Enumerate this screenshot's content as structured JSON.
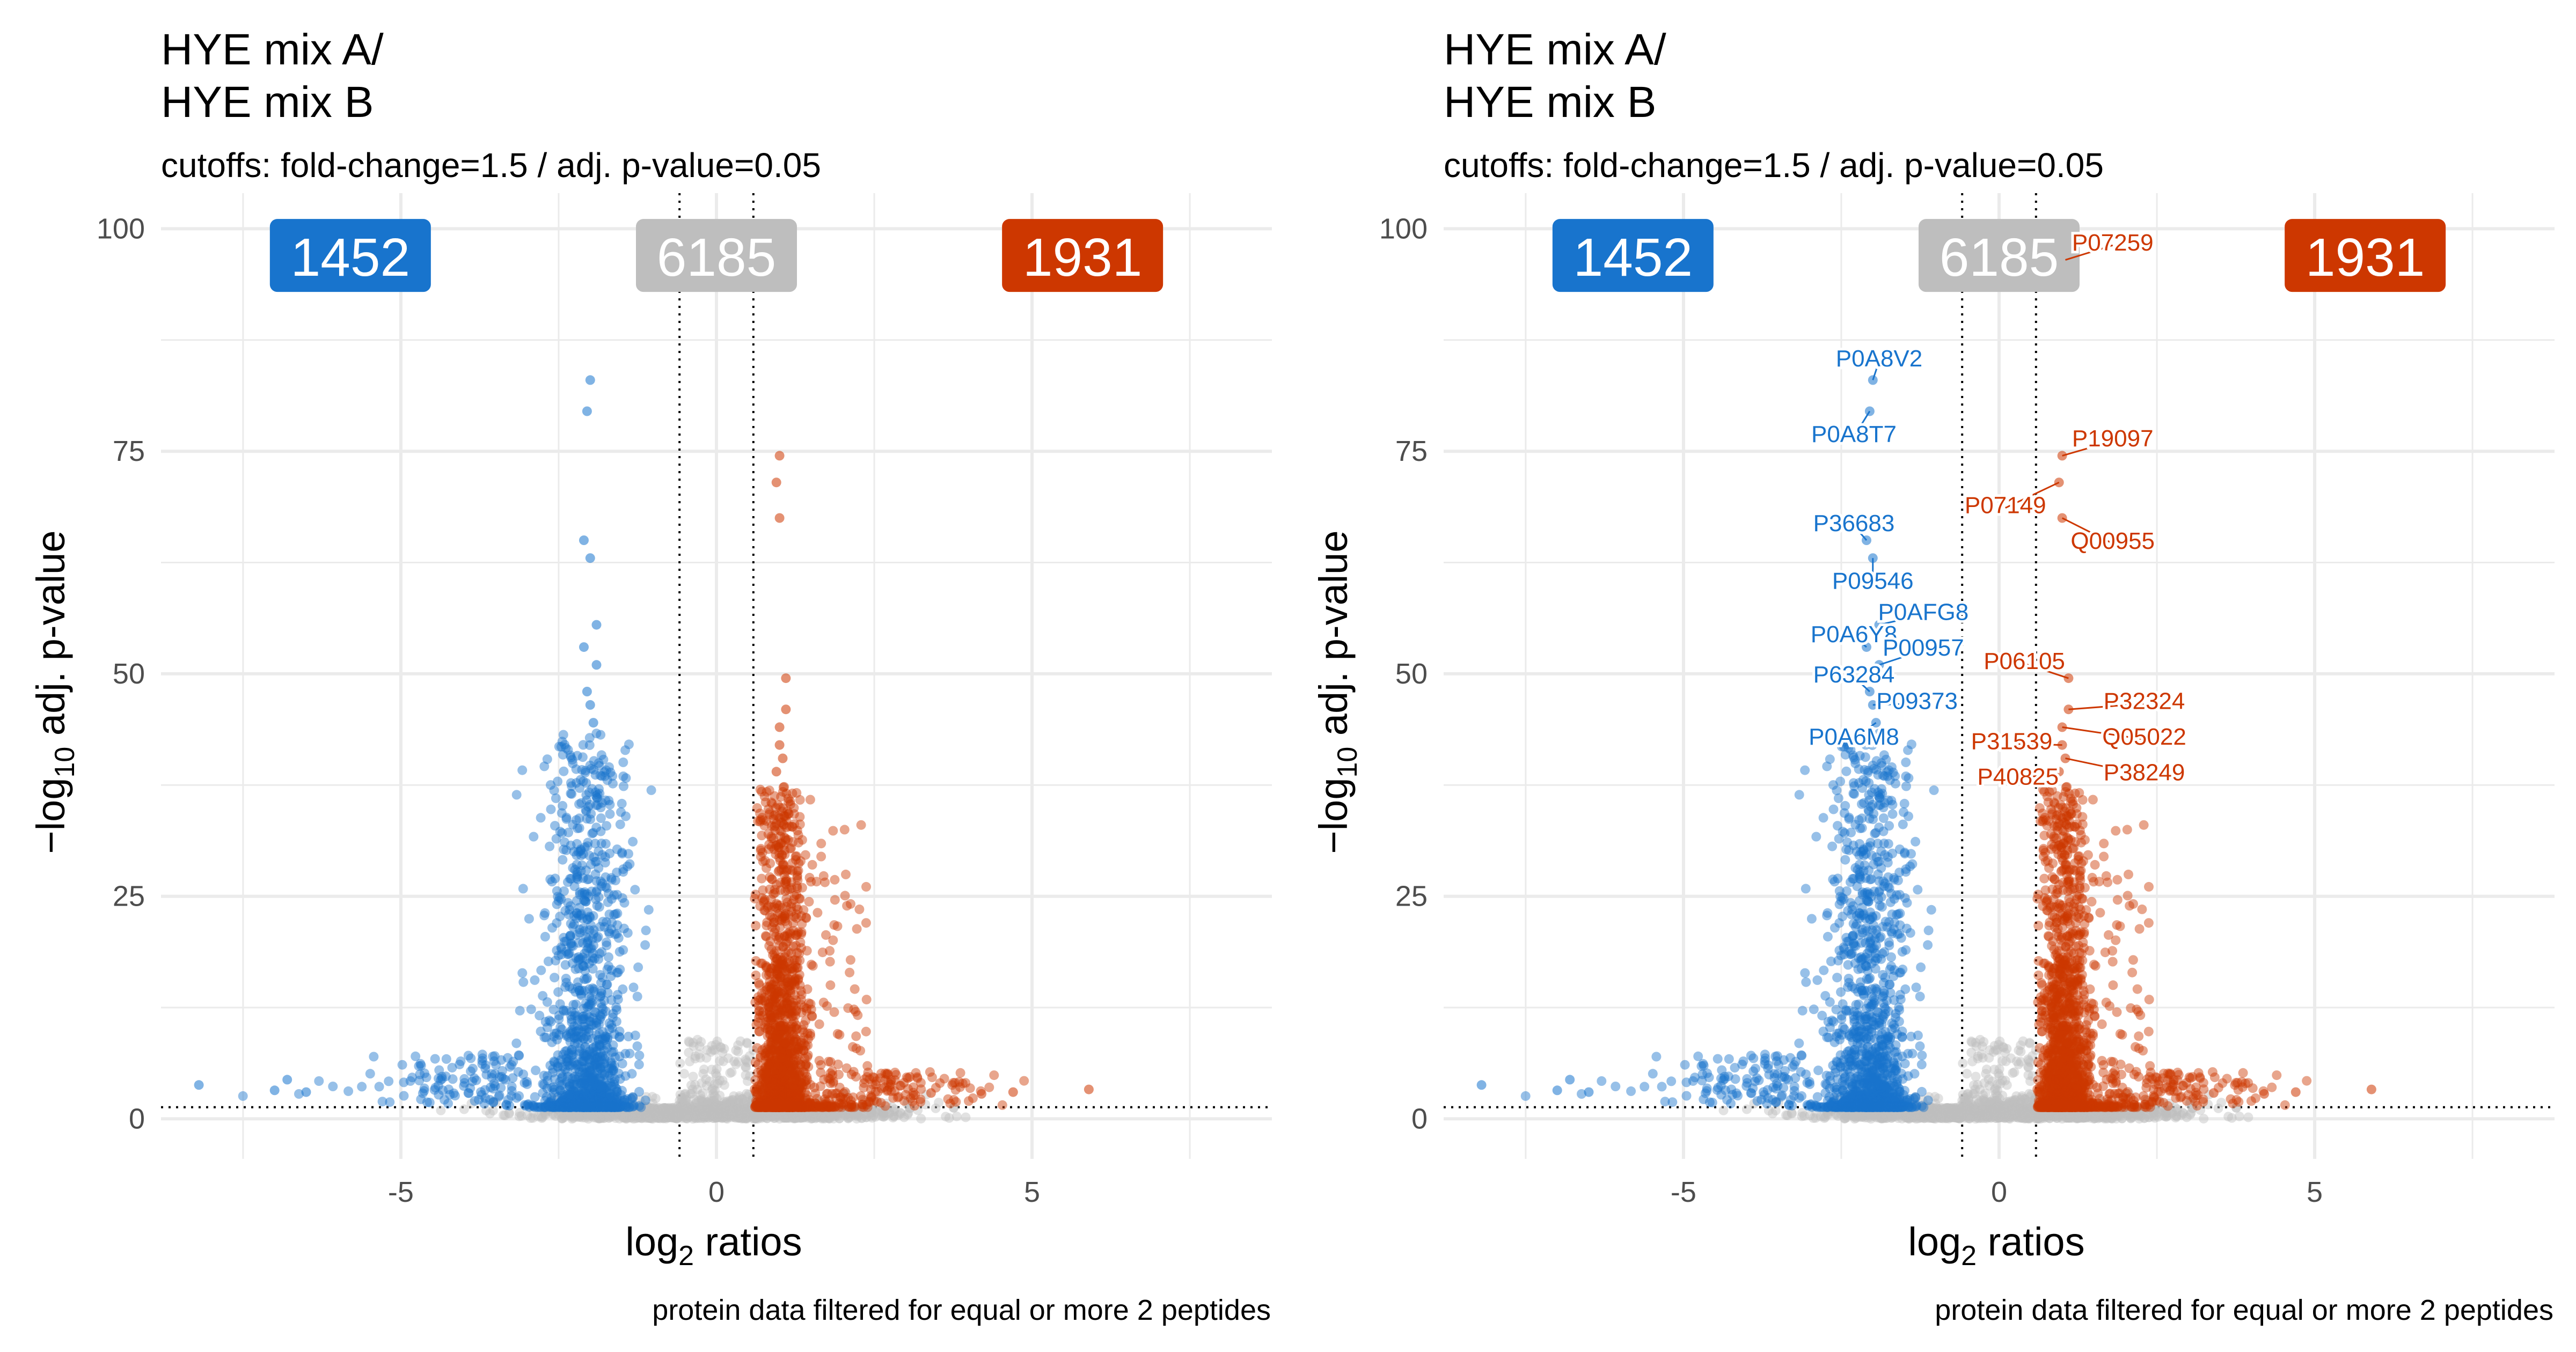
{
  "colors": {
    "down": "#1874CD",
    "up": "#CD3700",
    "nonsig": "#BEBEBE",
    "grid": "#EBEBEB",
    "text": "#000000",
    "axis_text": "#4D4D4D"
  },
  "chart_data": [
    {
      "type": "scatter",
      "title_line1": "HYE mix A/",
      "title_line2": "HYE mix B",
      "subtitle": "cutoffs: fold-change=1.5 / adj. p-value=0.05",
      "caption": "protein data filtered for equal or more 2 peptides",
      "xlabel_prefix": "log",
      "xlabel_sub": "2",
      "xlabel_suffix": " ratios",
      "ylabel_prefix": "−log",
      "ylabel_sub": "10",
      "ylabel_suffix": " adj. p-value",
      "xlim": [
        -8.8,
        8.8
      ],
      "ylim": [
        -4.5,
        104
      ],
      "x_ticks": [
        -5,
        0,
        5
      ],
      "x_tick_labels": [
        "-5",
        "0",
        "5"
      ],
      "y_ticks": [
        0,
        25,
        50,
        75,
        100
      ],
      "y_tick_labels": [
        "0",
        "25",
        "50",
        "75",
        "100"
      ],
      "grid": true,
      "thresholds": {
        "x": [
          -0.585,
          0.585
        ],
        "y": 1.301
      },
      "counts": {
        "down": "1452",
        "nonsig": "6185",
        "up": "1931"
      },
      "count_positions_x": [
        -5.8,
        0,
        5.8
      ],
      "count_y": 97,
      "labels": [],
      "highlight_points": {
        "down": [
          [
            -2.0,
            83.0
          ],
          [
            -2.05,
            79.5
          ],
          [
            -2.1,
            65.0
          ],
          [
            -2.0,
            63.0
          ],
          [
            -1.9,
            55.5
          ],
          [
            -2.1,
            53.0
          ],
          [
            -1.9,
            51.0
          ],
          [
            -2.05,
            48.0
          ],
          [
            -2.0,
            46.5
          ],
          [
            -1.95,
            44.5
          ],
          [
            -8.2,
            3.8
          ],
          [
            -7.0,
            3.2
          ],
          [
            -6.8,
            4.4
          ],
          [
            -6.5,
            3.0
          ]
        ],
        "up": [
          [
            1.0,
            74.5
          ],
          [
            0.95,
            71.5
          ],
          [
            1.0,
            67.5
          ],
          [
            1.1,
            49.5
          ],
          [
            1.1,
            46.0
          ],
          [
            1.0,
            44.0
          ],
          [
            1.0,
            42.0
          ],
          [
            1.05,
            40.5
          ],
          [
            0.95,
            39.0
          ],
          [
            5.9,
            3.3
          ],
          [
            4.7,
            3.0
          ],
          [
            4.2,
            2.8
          ],
          [
            3.4,
            2.9
          ]
        ]
      }
    },
    {
      "type": "scatter",
      "title_line1": "HYE mix A/",
      "title_line2": "HYE mix B",
      "subtitle": "cutoffs: fold-change=1.5 / adj. p-value=0.05",
      "caption": "protein data filtered for equal or more 2 peptides",
      "xlabel_prefix": "log",
      "xlabel_sub": "2",
      "xlabel_suffix": " ratios",
      "ylabel_prefix": "−log",
      "ylabel_sub": "10",
      "ylabel_suffix": " adj. p-value",
      "xlim": [
        -8.8,
        8.8
      ],
      "ylim": [
        -4.5,
        104
      ],
      "x_ticks": [
        -5,
        0,
        5
      ],
      "x_tick_labels": [
        "-5",
        "0",
        "5"
      ],
      "y_ticks": [
        0,
        25,
        50,
        75,
        100
      ],
      "y_tick_labels": [
        "0",
        "25",
        "50",
        "75",
        "100"
      ],
      "grid": true,
      "thresholds": {
        "x": [
          -0.585,
          0.585
        ],
        "y": 1.301
      },
      "counts": {
        "down": "1452",
        "nonsig": "6185",
        "up": "1931"
      },
      "count_positions_x": [
        -5.8,
        0,
        5.8
      ],
      "count_y": 97,
      "labels": [
        {
          "text": "P0A8V2",
          "x": -2.0,
          "y": 83.0,
          "lx": -1.9,
          "ly": 85.5,
          "group": "down"
        },
        {
          "text": "P0A8T7",
          "x": -2.05,
          "y": 79.5,
          "lx": -2.3,
          "ly": 77.0,
          "group": "down"
        },
        {
          "text": "P36683",
          "x": -2.1,
          "y": 65.0,
          "lx": -2.3,
          "ly": 67.0,
          "group": "down"
        },
        {
          "text": "P09546",
          "x": -2.0,
          "y": 63.0,
          "lx": -2.0,
          "ly": 60.5,
          "group": "down"
        },
        {
          "text": "P0AFG8",
          "x": -1.9,
          "y": 55.5,
          "lx": -1.2,
          "ly": 57.0,
          "group": "down"
        },
        {
          "text": "P0A6Y8",
          "x": -2.1,
          "y": 53.0,
          "lx": -2.3,
          "ly": 54.5,
          "group": "down"
        },
        {
          "text": "P00957",
          "x": -1.9,
          "y": 51.0,
          "lx": -1.2,
          "ly": 53.0,
          "group": "down"
        },
        {
          "text": "P63284",
          "x": -2.05,
          "y": 48.0,
          "lx": -2.3,
          "ly": 50.0,
          "group": "down"
        },
        {
          "text": "P09373",
          "x": -2.0,
          "y": 46.5,
          "lx": -1.3,
          "ly": 47.0,
          "group": "down"
        },
        {
          "text": "P0A6M8",
          "x": -1.95,
          "y": 44.5,
          "lx": -2.3,
          "ly": 43.0,
          "group": "down"
        },
        {
          "text": "P07259",
          "x": 1.05,
          "y": 96.5,
          "lx": 1.8,
          "ly": 98.5,
          "group": "up"
        },
        {
          "text": "P19097",
          "x": 1.0,
          "y": 74.5,
          "lx": 1.8,
          "ly": 76.5,
          "group": "up"
        },
        {
          "text": "P07149",
          "x": 0.95,
          "y": 71.5,
          "lx": 0.1,
          "ly": 69.0,
          "group": "up"
        },
        {
          "text": "Q00955",
          "x": 1.0,
          "y": 67.5,
          "lx": 1.8,
          "ly": 65.0,
          "group": "up"
        },
        {
          "text": "P06105",
          "x": 1.1,
          "y": 49.5,
          "lx": 0.4,
          "ly": 51.5,
          "group": "up"
        },
        {
          "text": "P32324",
          "x": 1.1,
          "y": 46.0,
          "lx": 2.3,
          "ly": 47.0,
          "group": "up"
        },
        {
          "text": "Q05022",
          "x": 1.0,
          "y": 44.0,
          "lx": 2.3,
          "ly": 43.0,
          "group": "up"
        },
        {
          "text": "P31539",
          "x": 1.0,
          "y": 42.0,
          "lx": 0.2,
          "ly": 42.5,
          "group": "up"
        },
        {
          "text": "P38249",
          "x": 1.05,
          "y": 40.5,
          "lx": 2.3,
          "ly": 39.0,
          "group": "up"
        },
        {
          "text": "P40825",
          "x": 0.95,
          "y": 39.0,
          "lx": 0.3,
          "ly": 38.5,
          "group": "up"
        }
      ],
      "highlight_points": {
        "down": [
          [
            -2.0,
            83.0
          ],
          [
            -2.05,
            79.5
          ],
          [
            -2.1,
            65.0
          ],
          [
            -2.0,
            63.0
          ],
          [
            -1.9,
            55.5
          ],
          [
            -2.1,
            53.0
          ],
          [
            -1.9,
            51.0
          ],
          [
            -2.05,
            48.0
          ],
          [
            -2.0,
            46.5
          ],
          [
            -1.95,
            44.5
          ],
          [
            -8.2,
            3.8
          ],
          [
            -7.0,
            3.2
          ],
          [
            -6.8,
            4.4
          ],
          [
            -6.5,
            3.0
          ]
        ],
        "up": [
          [
            1.05,
            96.5
          ],
          [
            1.0,
            74.5
          ],
          [
            0.95,
            71.5
          ],
          [
            1.0,
            67.5
          ],
          [
            1.1,
            49.5
          ],
          [
            1.1,
            46.0
          ],
          [
            1.0,
            44.0
          ],
          [
            1.0,
            42.0
          ],
          [
            1.05,
            40.5
          ],
          [
            0.95,
            39.0
          ],
          [
            5.9,
            3.3
          ],
          [
            4.7,
            3.0
          ],
          [
            4.2,
            2.8
          ],
          [
            3.4,
            2.9
          ]
        ]
      }
    }
  ]
}
